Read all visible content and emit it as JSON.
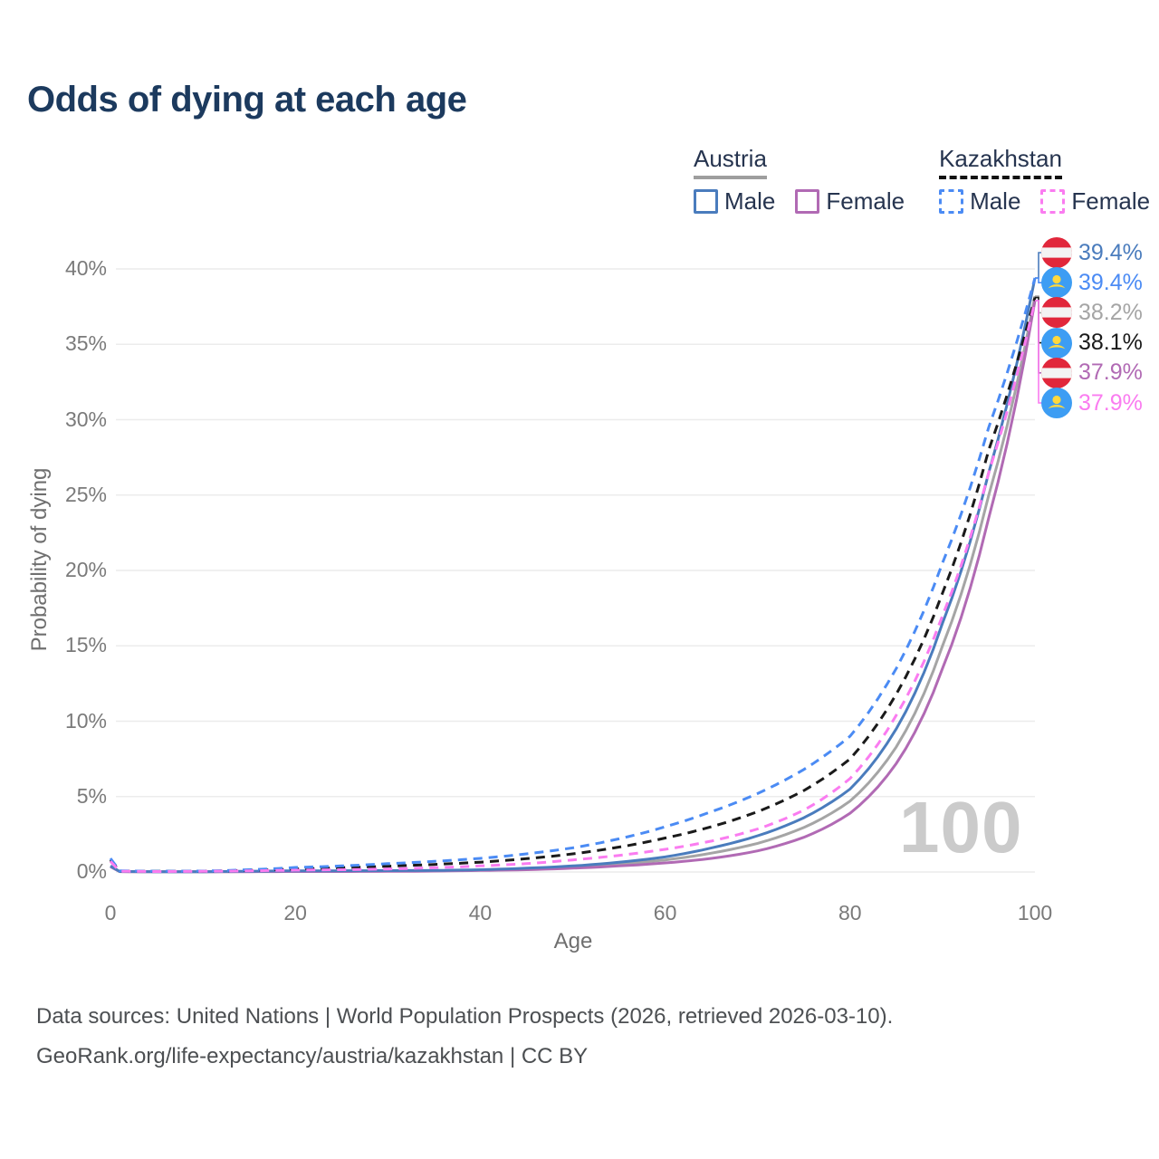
{
  "title": "Odds of dying at each age",
  "legend": {
    "groups": [
      {
        "label": "Austria",
        "line_style": "solid",
        "underline_color": "#9e9e9e",
        "items": [
          {
            "label": "Male",
            "color": "#4a7cbd"
          },
          {
            "label": "Female",
            "color": "#b16ab4"
          }
        ]
      },
      {
        "label": "Kazakhstan",
        "line_style": "dashed",
        "underline_color": "#111111",
        "items": [
          {
            "label": "Male",
            "color": "#4b8bf4"
          },
          {
            "label": "Female",
            "color": "#fa7cf0"
          }
        ]
      }
    ]
  },
  "watermark": "100",
  "footer": {
    "line1": "Data sources: United Nations | World Population Prospects (2026, retrieved 2026-03-10).",
    "line2": "GeoRank.org/life-expectancy/austria/kazakhstan | CC BY"
  },
  "chart_data": {
    "type": "line",
    "title": "Odds of dying at each age",
    "xlabel": "Age",
    "ylabel": "Probability of dying",
    "xlim": [
      0,
      100
    ],
    "ylim": [
      0,
      40
    ],
    "x_ticks": [
      0,
      20,
      40,
      60,
      80,
      100
    ],
    "y_ticks": [
      0,
      5,
      10,
      15,
      20,
      25,
      30,
      35,
      40
    ],
    "y_tick_suffix": "%",
    "grid": true,
    "legend_position": "top-right",
    "x": [
      0,
      1,
      5,
      10,
      15,
      20,
      25,
      30,
      35,
      40,
      45,
      50,
      55,
      60,
      65,
      70,
      75,
      80,
      85,
      90,
      95,
      100
    ],
    "series": [
      {
        "name": "Austria Male",
        "country": "austria",
        "sex": "male",
        "color": "#4a7cbd",
        "dashed": false,
        "row": 0,
        "end_label": "39.4%",
        "values": [
          0.4,
          0.03,
          0.02,
          0.02,
          0.05,
          0.08,
          0.08,
          0.09,
          0.1,
          0.15,
          0.25,
          0.4,
          0.65,
          1.0,
          1.6,
          2.4,
          3.6,
          5.5,
          9.5,
          16.5,
          26.5,
          39.4
        ]
      },
      {
        "name": "Kazakhstan Male",
        "country": "kazakhstan",
        "sex": "male",
        "color": "#4b8bf4",
        "dashed": true,
        "row": 1,
        "end_label": "39.4%",
        "values": [
          0.9,
          0.07,
          0.05,
          0.06,
          0.15,
          0.3,
          0.4,
          0.55,
          0.7,
          0.9,
          1.2,
          1.6,
          2.2,
          3.0,
          4.0,
          5.2,
          6.8,
          9.0,
          13.5,
          20.5,
          29.5,
          39.4
        ]
      },
      {
        "name": "Austria Both sexes",
        "country": "austria",
        "sex": "both",
        "color": "#a5a5a5",
        "dashed": false,
        "row": 2,
        "end_label": "38.2%",
        "values": [
          0.38,
          0.028,
          0.016,
          0.016,
          0.035,
          0.055,
          0.055,
          0.065,
          0.08,
          0.12,
          0.2,
          0.32,
          0.52,
          0.8,
          1.25,
          1.9,
          2.95,
          4.7,
          8.3,
          15.0,
          25.0,
          38.2
        ]
      },
      {
        "name": "Kazakhstan Both sexes",
        "country": "kazakhstan",
        "sex": "both",
        "color": "#1a1a1a",
        "dashed": true,
        "row": 3,
        "end_label": "38.1%",
        "values": [
          0.8,
          0.06,
          0.04,
          0.05,
          0.11,
          0.2,
          0.28,
          0.38,
          0.5,
          0.65,
          0.88,
          1.2,
          1.65,
          2.25,
          3.0,
          4.0,
          5.4,
          7.5,
          11.8,
          18.5,
          28.0,
          38.1
        ]
      },
      {
        "name": "Austria Female",
        "country": "austria",
        "sex": "female",
        "color": "#b16ab4",
        "dashed": false,
        "row": 4,
        "end_label": "37.9%",
        "values": [
          0.35,
          0.025,
          0.012,
          0.012,
          0.02,
          0.03,
          0.03,
          0.04,
          0.06,
          0.1,
          0.15,
          0.25,
          0.4,
          0.6,
          0.9,
          1.4,
          2.3,
          3.9,
          7.2,
          13.5,
          23.5,
          37.9
        ]
      },
      {
        "name": "Kazakhstan Female",
        "country": "kazakhstan",
        "sex": "female",
        "color": "#fa7cf0",
        "dashed": true,
        "row": 5,
        "end_label": "37.9%",
        "values": [
          0.7,
          0.05,
          0.03,
          0.04,
          0.08,
          0.12,
          0.15,
          0.2,
          0.28,
          0.4,
          0.55,
          0.8,
          1.1,
          1.5,
          2.05,
          2.85,
          4.1,
          6.2,
          10.4,
          17.0,
          26.5,
          37.9
        ]
      }
    ],
    "flag_colors": {
      "austria_red": "#e1273b",
      "austria_white": "#f3f3f3",
      "kazakhstan_blue": "#3d9df3",
      "kazakhstan_yellow": "#ffd83d"
    }
  }
}
